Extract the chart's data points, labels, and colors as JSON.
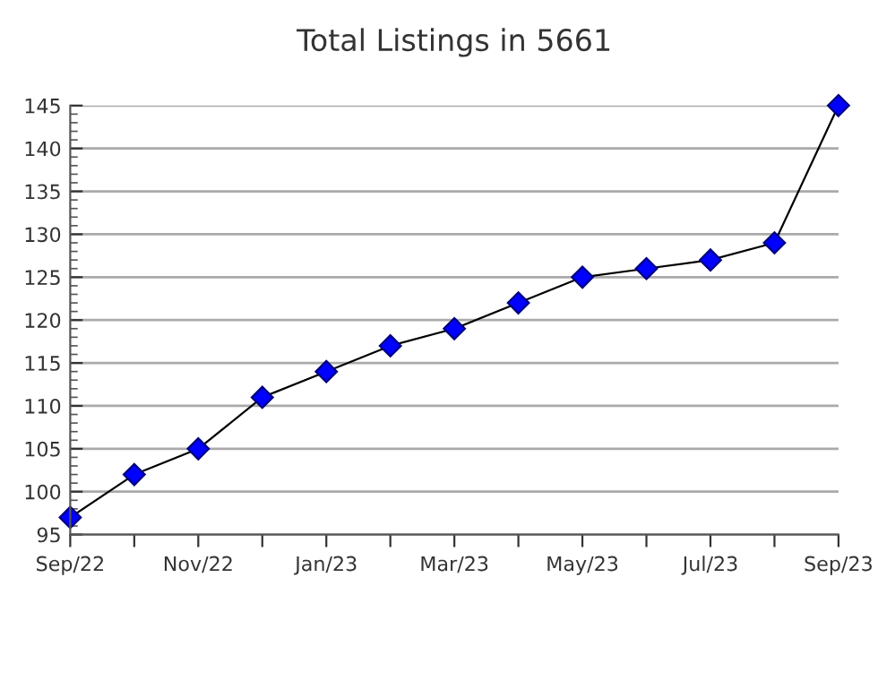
{
  "chart_data": {
    "type": "line",
    "title": "Total Listings in 5661",
    "categories": [
      "Sep/22",
      null,
      "Nov/22",
      null,
      "Jan/23",
      null,
      "Mar/23",
      null,
      "May/23",
      null,
      "Jul/23",
      null,
      "Sep/23"
    ],
    "series": [
      {
        "color": "#0000ff",
        "values": [
          97,
          102,
          105,
          111,
          114,
          117,
          119,
          122,
          125,
          126,
          127,
          129,
          145
        ]
      }
    ],
    "ylim": [
      95,
      145
    ],
    "yticks": [
      95,
      100,
      105,
      110,
      115,
      120,
      125,
      130,
      135,
      140,
      145
    ],
    "grid": "y",
    "marker": "diamond",
    "line_style": "solid"
  }
}
